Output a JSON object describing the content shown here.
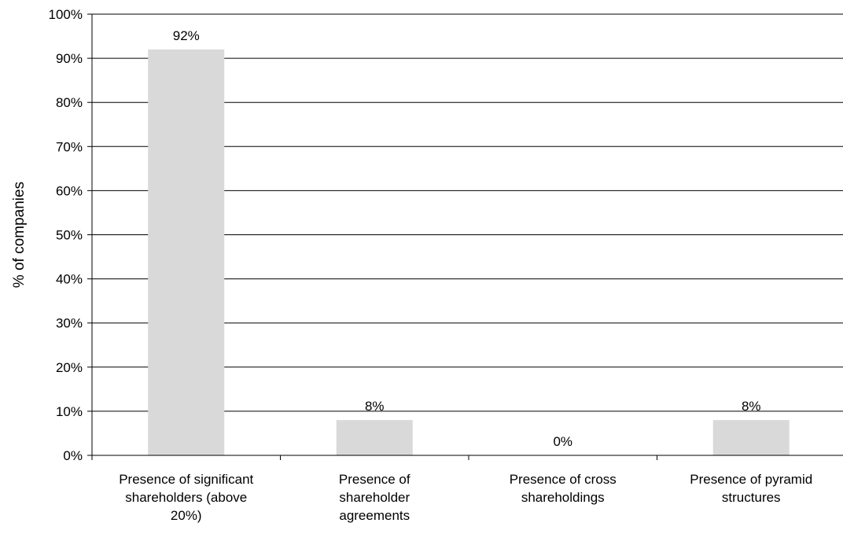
{
  "chart_data": {
    "type": "bar",
    "title": "",
    "xlabel": "",
    "ylabel": "% of companies",
    "ylim": [
      0,
      100
    ],
    "y_tick_step": 10,
    "y_tick_format": "percent",
    "grid": true,
    "legend": "none",
    "bar_color": "#d9d9d9",
    "categories": [
      [
        "Presence of significant",
        "shareholders (above",
        "20%)"
      ],
      [
        "Presence of",
        "shareholder",
        "agreements"
      ],
      [
        "Presence of cross",
        "shareholdings"
      ],
      [
        "Presence of pyramid",
        "structures"
      ]
    ],
    "values": [
      92,
      8,
      0,
      8
    ],
    "data_labels": [
      "92%",
      "8%",
      "0%",
      "8%"
    ]
  }
}
